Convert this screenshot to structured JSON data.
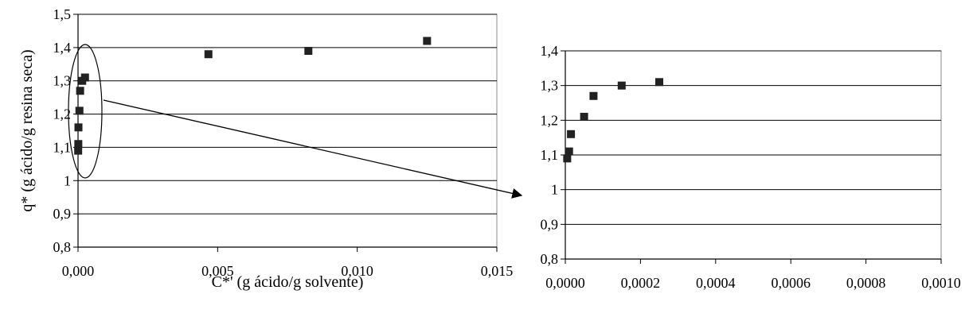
{
  "chart_data": [
    {
      "type": "scatter",
      "title": "",
      "xlabel": "C*' (g ácido/g solvente)",
      "ylabel": "q* (g ácido/g resina seca)",
      "xlim": [
        0,
        0.015
      ],
      "ylim": [
        0.8,
        1.5
      ],
      "xticks": [
        0,
        0.005,
        0.01,
        0.015
      ],
      "xtick_labels": [
        "0,000",
        "0,005",
        "0,010",
        "0,015"
      ],
      "yticks": [
        0.8,
        0.9,
        1.0,
        1.1,
        1.2,
        1.3,
        1.4,
        1.5
      ],
      "ytick_labels": [
        "0,8",
        "0,9",
        "1",
        "1,1",
        "1,2",
        "1,3",
        "1,4",
        "1,5"
      ],
      "grid": "horizontal",
      "legend": "none",
      "marker": "square",
      "marker_color": "#222222",
      "series": [
        {
          "x": [
            5e-06,
            1e-05,
            1.5e-05,
            5e-05,
            7.5e-05,
            0.00015,
            0.00025,
            0.00467,
            0.00825,
            0.0125
          ],
          "y": [
            1.09,
            1.11,
            1.16,
            1.21,
            1.27,
            1.3,
            1.31,
            1.38,
            1.39,
            1.42
          ]
        }
      ],
      "annotation": "ellipse around points near x = 0, with arrow pointing to zoomed chart"
    },
    {
      "type": "scatter",
      "title": "",
      "xlabel": "",
      "ylabel": "",
      "xlim": [
        0,
        0.001
      ],
      "ylim": [
        0.8,
        1.4
      ],
      "xticks": [
        0,
        0.0002,
        0.0004,
        0.0006,
        0.0008,
        0.001
      ],
      "xtick_labels": [
        "0,0000",
        "0,0002",
        "0,0004",
        "0,0006",
        "0,0008",
        "0,0010"
      ],
      "yticks": [
        0.8,
        0.9,
        1.0,
        1.1,
        1.2,
        1.3,
        1.4
      ],
      "ytick_labels": [
        "0,8",
        "0,9",
        "1",
        "1,1",
        "1,2",
        "1,3",
        "1,4"
      ],
      "grid": "horizontal",
      "legend": "none",
      "marker": "square",
      "marker_color": "#222222",
      "series": [
        {
          "x": [
            5e-06,
            1e-05,
            1.5e-05,
            5e-05,
            7.5e-05,
            0.00015,
            0.00025
          ],
          "y": [
            1.09,
            1.11,
            1.16,
            1.21,
            1.27,
            1.3,
            1.31
          ]
        }
      ]
    }
  ]
}
